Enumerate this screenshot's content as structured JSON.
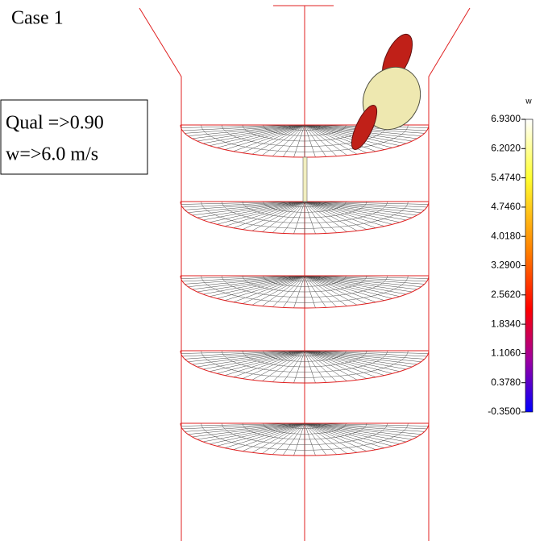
{
  "caption": "Case 1",
  "criteria": [
    "Qual =>0.90",
    "w=>6.0 m/s"
  ],
  "colorbar": {
    "title": "w",
    "range": [
      -0.35,
      6.93
    ],
    "ticks": [
      {
        "value": 6.93,
        "label": "6.9300"
      },
      {
        "value": 6.202,
        "label": "6.2020"
      },
      {
        "value": 5.474,
        "label": "5.4740"
      },
      {
        "value": 4.746,
        "label": "4.7460"
      },
      {
        "value": 4.018,
        "label": "4.0180"
      },
      {
        "value": 3.29,
        "label": "3.2900"
      },
      {
        "value": 2.562,
        "label": "2.5620"
      },
      {
        "value": 1.834,
        "label": "1.8340"
      },
      {
        "value": 1.106,
        "label": "1.1060"
      },
      {
        "value": 0.378,
        "label": "0.3780"
      },
      {
        "value": -0.35,
        "label": "-0.3500"
      }
    ]
  }
}
